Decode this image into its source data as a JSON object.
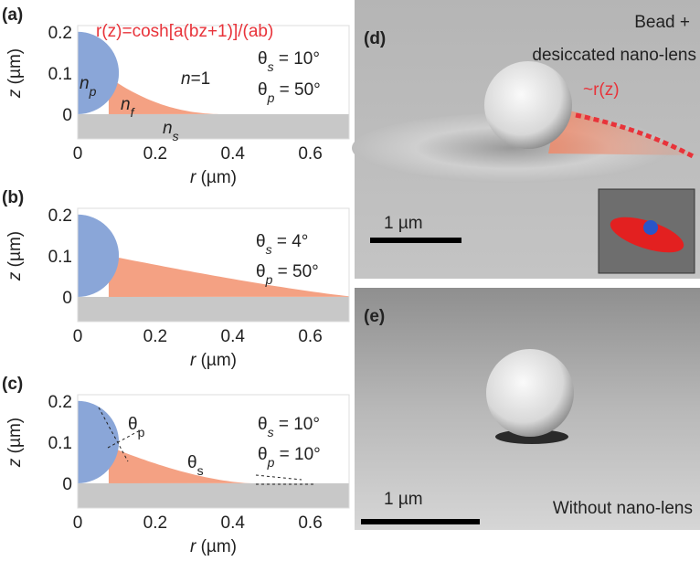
{
  "panels": [
    {
      "label": "(a)",
      "xlabel": {
        "symbol": "r",
        "unit": " (µm)"
      },
      "ylabel": {
        "symbol": "z",
        "unit": " (µm)"
      },
      "xlim": [
        0,
        0.7
      ],
      "ylim": [
        -0.06,
        0.215
      ],
      "xticks": [
        0,
        0.2,
        0.4,
        0.6
      ],
      "yticks": [
        0,
        0.1,
        0.2
      ],
      "annotations": [
        {
          "color": "#e8333a",
          "parts": [
            {
              "t": "r(z)=cosh[a(bz+1)]/(ab)",
              "italic": false
            }
          ]
        },
        {
          "parts": [
            {
              "t": "n",
              "italic": true
            },
            {
              "t": "p",
              "italic": true,
              "sub": true
            }
          ]
        },
        {
          "parts": [
            {
              "t": "n",
              "italic": true
            },
            {
              "t": "f",
              "italic": true,
              "sub": true
            }
          ]
        },
        {
          "parts": [
            {
              "t": "n",
              "italic": true
            },
            {
              "t": "=1"
            }
          ]
        },
        {
          "parts": [
            {
              "t": "n",
              "italic": true
            },
            {
              "t": "s",
              "italic": true,
              "sub": true
            }
          ]
        },
        {
          "parts": [
            {
              "t": "θ"
            },
            {
              "t": "s",
              "italic": true,
              "sub": true
            },
            {
              "t": " = 10°"
            }
          ]
        },
        {
          "parts": [
            {
              "t": "θ"
            },
            {
              "t": "p",
              "italic": true,
              "sub": true
            },
            {
              "t": " = 50°"
            }
          ]
        }
      ]
    },
    {
      "label": "(b)",
      "xlabel": {
        "symbol": "r",
        "unit": " (µm)"
      },
      "ylabel": {
        "symbol": "z",
        "unit": " (µm)"
      },
      "xlim": [
        0,
        0.7
      ],
      "ylim": [
        -0.06,
        0.215
      ],
      "xticks": [
        0,
        0.2,
        0.4,
        0.6
      ],
      "yticks": [
        0,
        0.1,
        0.2
      ],
      "annotations": [
        {
          "parts": [
            {
              "t": "θ"
            },
            {
              "t": "s",
              "italic": true,
              "sub": true
            },
            {
              "t": " = 4°"
            }
          ]
        },
        {
          "parts": [
            {
              "t": "θ"
            },
            {
              "t": "p",
              "italic": true,
              "sub": true
            },
            {
              "t": " = 50°"
            }
          ]
        }
      ]
    },
    {
      "label": "(c)",
      "xlabel": {
        "symbol": "r",
        "unit": " (µm)"
      },
      "ylabel": {
        "symbol": "z",
        "unit": " (µm)"
      },
      "xlim": [
        0,
        0.7
      ],
      "ylim": [
        -0.06,
        0.215
      ],
      "xticks": [
        0,
        0.2,
        0.4,
        0.6
      ],
      "yticks": [
        0,
        0.1,
        0.2
      ],
      "annotations": [
        {
          "parts": [
            {
              "t": "θ"
            },
            {
              "t": "p",
              "sub": true
            }
          ]
        },
        {
          "parts": [
            {
              "t": "θ"
            },
            {
              "t": "s",
              "sub": true
            }
          ]
        },
        {
          "parts": [
            {
              "t": "θ"
            },
            {
              "t": "s",
              "italic": true,
              "sub": true
            },
            {
              "t": " = 10°"
            }
          ]
        },
        {
          "parts": [
            {
              "t": "θ"
            },
            {
              "t": "p",
              "italic": true,
              "sub": true
            },
            {
              "t": " = 10°"
            }
          ]
        }
      ]
    }
  ],
  "images": {
    "d": {
      "label": "(d)",
      "caption_1": "Bead +",
      "caption_2": "desiccated nano-lens",
      "profile": "~r(z)",
      "scale": "1 µm"
    },
    "e": {
      "label": "(e)",
      "caption": "Without nano-lens",
      "scale": "1 µm"
    }
  }
}
